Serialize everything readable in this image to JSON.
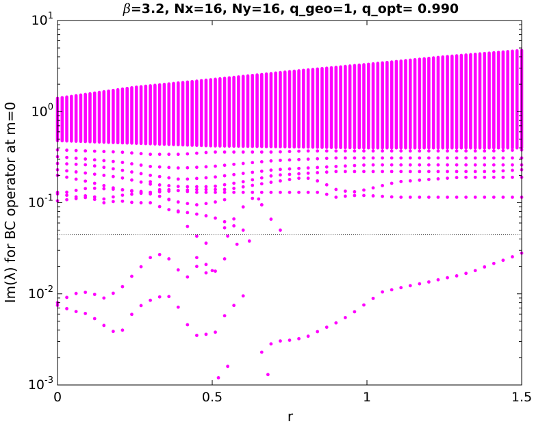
{
  "chart_data": {
    "type": "scatter",
    "title": {
      "symbol": "β",
      "text": "=3.2, Nx=16, Ny=16, q_geo=1, q_opt= 0.990"
    },
    "xlabel": "r",
    "ylabel": "Im(λ) for BC operator at m=0",
    "xlim": [
      0,
      1.5
    ],
    "ylim": [
      0.001,
      10
    ],
    "yscale": "log",
    "grid": false,
    "legend": "none",
    "x_ticks": [
      {
        "value": 0,
        "label": "0"
      },
      {
        "value": 0.5,
        "label": "0.5"
      },
      {
        "value": 1,
        "label": "1"
      },
      {
        "value": 1.5,
        "label": "1.5"
      }
    ],
    "y_ticks": [
      {
        "value": 0.001,
        "base": "10",
        "exp": "-3"
      },
      {
        "value": 0.01,
        "base": "10",
        "exp": "-2"
      },
      {
        "value": 0.1,
        "base": "10",
        "exp": "-1"
      },
      {
        "value": 1,
        "base": "10",
        "exp": "0"
      },
      {
        "value": 10,
        "base": "10",
        "exp": "1"
      }
    ],
    "reference_line": {
      "y": 0.045,
      "style": "dotted",
      "color": "#000000"
    },
    "marker_color": "#ff00ff",
    "r_values": {
      "start": 0,
      "stop": 1.5,
      "step": 0.015
    },
    "band": {
      "description": "dense column of eigenvalues at every r",
      "top": [
        [
          0,
          1.4
        ],
        [
          0.25,
          1.85
        ],
        [
          0.5,
          2.25
        ],
        [
          0.75,
          2.75
        ],
        [
          1.0,
          3.3
        ],
        [
          1.25,
          4.0
        ],
        [
          1.5,
          4.7
        ]
      ],
      "bottom": [
        [
          0,
          0.48
        ],
        [
          0.5,
          0.42
        ],
        [
          1.0,
          0.4
        ],
        [
          1.5,
          0.4
        ]
      ]
    },
    "series": [
      {
        "points": [
          [
            0,
            0.38
          ],
          [
            0.1,
            0.37
          ],
          [
            0.2,
            0.36
          ],
          [
            0.3,
            0.34
          ],
          [
            0.4,
            0.34
          ],
          [
            0.5,
            0.36
          ],
          [
            0.6,
            0.36
          ],
          [
            0.7,
            0.36
          ],
          [
            0.8,
            0.37
          ],
          [
            0.9,
            0.37
          ],
          [
            1.0,
            0.37
          ],
          [
            1.1,
            0.37
          ],
          [
            1.2,
            0.37
          ],
          [
            1.3,
            0.37
          ],
          [
            1.4,
            0.37
          ],
          [
            1.5,
            0.38
          ]
        ]
      },
      {
        "points": [
          [
            0,
            0.32
          ],
          [
            0.1,
            0.3
          ],
          [
            0.2,
            0.28
          ],
          [
            0.3,
            0.25
          ],
          [
            0.4,
            0.24
          ],
          [
            0.5,
            0.25
          ],
          [
            0.6,
            0.27
          ],
          [
            0.7,
            0.29
          ],
          [
            0.8,
            0.3
          ],
          [
            0.9,
            0.31
          ],
          [
            1.0,
            0.31
          ],
          [
            1.1,
            0.31
          ],
          [
            1.2,
            0.31
          ],
          [
            1.3,
            0.31
          ],
          [
            1.4,
            0.31
          ],
          [
            1.5,
            0.31
          ]
        ]
      },
      {
        "points": [
          [
            0,
            0.27
          ],
          [
            0.1,
            0.26
          ],
          [
            0.2,
            0.23
          ],
          [
            0.3,
            0.2
          ],
          [
            0.4,
            0.18
          ],
          [
            0.5,
            0.19
          ],
          [
            0.6,
            0.21
          ],
          [
            0.7,
            0.23
          ],
          [
            0.8,
            0.24
          ],
          [
            0.9,
            0.25
          ],
          [
            1.0,
            0.26
          ],
          [
            1.1,
            0.26
          ],
          [
            1.2,
            0.26
          ],
          [
            1.3,
            0.26
          ],
          [
            1.4,
            0.26
          ],
          [
            1.5,
            0.26
          ]
        ]
      },
      {
        "points": [
          [
            0,
            0.23
          ],
          [
            0.1,
            0.21
          ],
          [
            0.2,
            0.19
          ],
          [
            0.3,
            0.16
          ],
          [
            0.4,
            0.15
          ],
          [
            0.5,
            0.15
          ],
          [
            0.6,
            0.17
          ],
          [
            0.7,
            0.2
          ],
          [
            0.8,
            0.21
          ],
          [
            0.9,
            0.22
          ],
          [
            1.0,
            0.22
          ],
          [
            1.1,
            0.22
          ],
          [
            1.2,
            0.22
          ],
          [
            1.3,
            0.22
          ],
          [
            1.4,
            0.22
          ],
          [
            1.5,
            0.23
          ]
        ]
      },
      {
        "points": [
          [
            0,
            0.2
          ],
          [
            0.1,
            0.17
          ],
          [
            0.2,
            0.14
          ],
          [
            0.3,
            0.13
          ],
          [
            0.45,
            0.14
          ],
          [
            0.55,
            0.14
          ],
          [
            0.7,
            0.17
          ],
          [
            0.8,
            0.19
          ],
          [
            0.85,
            0.17
          ],
          [
            0.9,
            0.14
          ],
          [
            0.95,
            0.13
          ],
          [
            1.0,
            0.14
          ],
          [
            1.1,
            0.17
          ],
          [
            1.2,
            0.18
          ],
          [
            1.3,
            0.19
          ],
          [
            1.4,
            0.19
          ],
          [
            1.5,
            0.19
          ]
        ]
      },
      {
        "points": [
          [
            0,
            0.125
          ],
          [
            0.1,
            0.145
          ],
          [
            0.2,
            0.14
          ],
          [
            0.3,
            0.125
          ],
          [
            0.35,
            0.14
          ],
          [
            0.45,
            0.13
          ],
          [
            0.55,
            0.13
          ],
          [
            0.65,
            0.13
          ],
          [
            0.75,
            0.13
          ],
          [
            0.85,
            0.13
          ],
          [
            0.9,
            0.115
          ],
          [
            0.95,
            0.12
          ],
          [
            1.0,
            0.12
          ],
          [
            1.1,
            0.115
          ],
          [
            1.2,
            0.115
          ],
          [
            1.3,
            0.115
          ],
          [
            1.4,
            0.115
          ],
          [
            1.5,
            0.115
          ]
        ]
      },
      {
        "points": [
          [
            0,
            0.13
          ],
          [
            0.05,
            0.115
          ],
          [
            0.1,
            0.12
          ],
          [
            0.15,
            0.11
          ],
          [
            0.2,
            0.12
          ],
          [
            0.25,
            0.125
          ],
          [
            0.3,
            0.13
          ],
          [
            0.35,
            0.11
          ],
          [
            0.4,
            0.1
          ],
          [
            0.45,
            0.095
          ],
          [
            0.5,
            0.1
          ],
          [
            0.55,
            0.11
          ]
        ]
      },
      {
        "points": [
          [
            0,
            0.105
          ],
          [
            0.05,
            0.11
          ],
          [
            0.1,
            0.115
          ],
          [
            0.15,
            0.1
          ],
          [
            0.2,
            0.105
          ],
          [
            0.25,
            0.1
          ],
          [
            0.3,
            0.1
          ],
          [
            0.35,
            0.085
          ],
          [
            0.4,
            0.08
          ],
          [
            0.45,
            0.075
          ],
          [
            0.5,
            0.07
          ],
          [
            0.55,
            0.06
          ],
          [
            0.6,
            0.05
          ]
        ]
      },
      {
        "points": [
          [
            0.3,
            0.17
          ],
          [
            0.32,
            0.15
          ],
          [
            0.35,
            0.12
          ],
          [
            0.38,
            0.09
          ],
          [
            0.4,
            0.07
          ],
          [
            0.42,
            0.055
          ],
          [
            0.44,
            0.046
          ],
          [
            0.46,
            0.04
          ],
          [
            0.48,
            0.036
          ]
        ]
      },
      {
        "points": [
          [
            0.52,
            0.06
          ],
          [
            0.54,
            0.053
          ],
          [
            0.56,
            0.06
          ],
          [
            0.6,
            0.09
          ],
          [
            0.64,
            0.12
          ],
          [
            0.68,
            0.075
          ],
          [
            0.7,
            0.058
          ],
          [
            0.72,
            0.05
          ]
        ]
      },
      {
        "points": [
          [
            0.65,
            0.11
          ],
          [
            0.66,
            0.095
          ]
        ]
      },
      {
        "points": [
          [
            0.55,
            0.043
          ],
          [
            0.58,
            0.035
          ],
          [
            0.62,
            0.038
          ]
        ]
      },
      {
        "points": [
          [
            0,
            0.008
          ],
          [
            0.05,
            0.01
          ],
          [
            0.1,
            0.0105
          ],
          [
            0.15,
            0.009
          ],
          [
            0.2,
            0.011
          ],
          [
            0.25,
            0.017
          ],
          [
            0.3,
            0.025
          ],
          [
            0.33,
            0.027
          ],
          [
            0.35,
            0.026
          ],
          [
            0.38,
            0.021
          ],
          [
            0.4,
            0.016
          ],
          [
            0.43,
            0.015
          ],
          [
            0.45,
            0.02
          ],
          [
            0.48,
            0.017
          ],
          [
            0.5,
            0.015
          ],
          [
            0.52,
            0.021
          ],
          [
            0.55,
            0.026
          ]
        ]
      },
      {
        "points": [
          [
            0,
            0.0075
          ],
          [
            0.05,
            0.0065
          ],
          [
            0.1,
            0.006
          ],
          [
            0.15,
            0.0045
          ],
          [
            0.2,
            0.0035
          ],
          [
            0.25,
            0.0068
          ],
          [
            0.3,
            0.0085
          ],
          [
            0.35,
            0.0098
          ],
          [
            0.38,
            0.0085
          ],
          [
            0.4,
            0.006
          ],
          [
            0.43,
            0.004
          ],
          [
            0.45,
            0.0035
          ],
          [
            0.48,
            0.0036
          ],
          [
            0.5,
            0.0032
          ],
          [
            0.52,
            0.0045
          ],
          [
            0.55,
            0.0065
          ],
          [
            0.58,
            0.008
          ],
          [
            0.6,
            0.0095
          ],
          [
            0.62,
            0.007
          ]
        ]
      },
      {
        "points": [
          [
            0.65,
            0.0021
          ],
          [
            0.67,
            0.0025
          ],
          [
            0.7,
            0.003
          ],
          [
            0.75,
            0.0031
          ],
          [
            0.8,
            0.0033
          ],
          [
            0.85,
            0.004
          ],
          [
            0.9,
            0.0048
          ],
          [
            0.95,
            0.006
          ],
          [
            1.0,
            0.008
          ],
          [
            1.05,
            0.0105
          ],
          [
            1.1,
            0.0115
          ],
          [
            1.15,
            0.0125
          ],
          [
            1.2,
            0.0135
          ],
          [
            1.25,
            0.0148
          ],
          [
            1.3,
            0.016
          ],
          [
            1.35,
            0.018
          ],
          [
            1.4,
            0.021
          ],
          [
            1.45,
            0.024
          ],
          [
            1.5,
            0.028
          ]
        ]
      },
      {
        "points": [
          [
            0.45,
            0.025
          ],
          [
            0.48,
            0.021
          ],
          [
            0.5,
            0.018
          ]
        ]
      },
      {
        "points": [
          [
            0.52,
            0.0012
          ],
          [
            0.68,
            0.0013
          ],
          [
            0.55,
            0.0016
          ]
        ]
      }
    ]
  }
}
